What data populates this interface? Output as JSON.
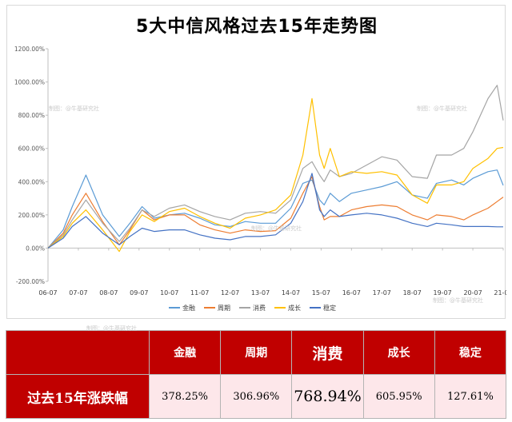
{
  "title": "5大中信风格过去15年走势图",
  "chart_data": {
    "type": "line",
    "title": "5大中信风格过去15年走势图",
    "yunit": "%",
    "ylim": [
      -200,
      1200
    ],
    "yticks": [
      -200,
      0,
      200,
      400,
      600,
      800,
      1000,
      1200
    ],
    "ytick_labels": [
      "-200.00%",
      "0.00%",
      "200.00%",
      "400.00%",
      "600.00%",
      "800.00%",
      "1000.00%",
      "1200.00%"
    ],
    "xlim": [
      2006.5,
      2021.5
    ],
    "xticks": [
      2006.5,
      2007.5,
      2008.5,
      2009.5,
      2010.5,
      2011.5,
      2012.5,
      2013.5,
      2014.5,
      2015.5,
      2016.5,
      2017.5,
      2018.5,
      2019.5,
      2020.5,
      2021.5
    ],
    "xtick_labels": [
      "06-07",
      "07-07",
      "08-07",
      "09-07",
      "10-07",
      "11-07",
      "12-07",
      "13-07",
      "14-07",
      "15-07",
      "16-07",
      "17-07",
      "18-07",
      "19-07",
      "20-07",
      "21-07"
    ],
    "grid": false,
    "legend_position": "bottom",
    "series": [
      {
        "name": "金融",
        "color": "#5b9bd5",
        "x": [
          2006.5,
          2007.0,
          2007.3,
          2007.75,
          2008.3,
          2008.85,
          2009.2,
          2009.6,
          2010.0,
          2010.5,
          2011.0,
          2011.5,
          2012.0,
          2012.5,
          2013.0,
          2013.5,
          2014.0,
          2014.5,
          2014.9,
          2015.2,
          2015.45,
          2015.6,
          2015.8,
          2016.1,
          2016.5,
          2017.0,
          2017.5,
          2018.0,
          2018.5,
          2019.0,
          2019.3,
          2019.8,
          2020.2,
          2020.5,
          2021.0,
          2021.3,
          2021.5
        ],
        "y": [
          0,
          110,
          250,
          440,
          200,
          70,
          150,
          250,
          180,
          200,
          210,
          180,
          140,
          130,
          160,
          150,
          150,
          240,
          390,
          410,
          290,
          260,
          330,
          280,
          330,
          350,
          370,
          400,
          320,
          300,
          390,
          410,
          380,
          420,
          460,
          470,
          378
        ]
      },
      {
        "name": "周期",
        "color": "#ed7d31",
        "x": [
          2006.5,
          2007.0,
          2007.3,
          2007.75,
          2008.3,
          2008.85,
          2009.2,
          2009.6,
          2010.0,
          2010.5,
          2011.0,
          2011.5,
          2012.0,
          2012.5,
          2013.0,
          2013.5,
          2014.0,
          2014.5,
          2014.9,
          2015.2,
          2015.45,
          2015.6,
          2015.8,
          2016.1,
          2016.5,
          2017.0,
          2017.5,
          2018.0,
          2018.5,
          2019.0,
          2019.3,
          2019.8,
          2020.2,
          2020.5,
          2021.0,
          2021.3,
          2021.5
        ],
        "y": [
          0,
          90,
          200,
          330,
          160,
          20,
          110,
          230,
          170,
          200,
          200,
          140,
          110,
          90,
          110,
          100,
          105,
          180,
          330,
          430,
          250,
          170,
          190,
          190,
          230,
          250,
          260,
          250,
          200,
          170,
          200,
          190,
          170,
          200,
          240,
          280,
          307
        ]
      },
      {
        "name": "消费",
        "color": "#a5a5a5",
        "x": [
          2006.5,
          2007.0,
          2007.3,
          2007.75,
          2008.3,
          2008.85,
          2009.2,
          2009.6,
          2010.0,
          2010.5,
          2011.0,
          2011.5,
          2012.0,
          2012.5,
          2013.0,
          2013.5,
          2014.0,
          2014.5,
          2014.9,
          2015.2,
          2015.45,
          2015.6,
          2015.8,
          2016.1,
          2016.5,
          2017.0,
          2017.5,
          2018.0,
          2018.5,
          2019.0,
          2019.3,
          2019.8,
          2020.2,
          2020.5,
          2021.0,
          2021.3,
          2021.5
        ],
        "y": [
          0,
          80,
          170,
          290,
          150,
          40,
          120,
          230,
          190,
          240,
          260,
          220,
          190,
          170,
          210,
          220,
          210,
          290,
          480,
          520,
          440,
          400,
          470,
          430,
          450,
          500,
          550,
          530,
          430,
          420,
          560,
          560,
          600,
          700,
          900,
          980,
          769
        ]
      },
      {
        "name": "成长",
        "color": "#ffc000",
        "x": [
          2006.5,
          2007.0,
          2007.3,
          2007.75,
          2008.3,
          2008.85,
          2009.2,
          2009.6,
          2010.0,
          2010.5,
          2011.0,
          2011.5,
          2012.0,
          2012.5,
          2013.0,
          2013.5,
          2014.0,
          2014.5,
          2014.9,
          2015.2,
          2015.45,
          2015.6,
          2015.8,
          2016.1,
          2016.5,
          2017.0,
          2017.5,
          2018.0,
          2018.5,
          2019.0,
          2019.3,
          2019.8,
          2020.2,
          2020.5,
          2021.0,
          2021.3,
          2021.5
        ],
        "y": [
          0,
          70,
          150,
          230,
          110,
          -20,
          100,
          200,
          160,
          220,
          240,
          190,
          150,
          120,
          180,
          200,
          230,
          320,
          560,
          900,
          560,
          480,
          600,
          430,
          460,
          450,
          460,
          440,
          320,
          270,
          380,
          380,
          400,
          480,
          540,
          600,
          606
        ]
      },
      {
        "name": "稳定",
        "color": "#4472c4",
        "x": [
          2006.5,
          2007.0,
          2007.3,
          2007.75,
          2008.3,
          2008.85,
          2009.2,
          2009.6,
          2010.0,
          2010.5,
          2011.0,
          2011.5,
          2012.0,
          2012.5,
          2013.0,
          2013.5,
          2014.0,
          2014.5,
          2014.9,
          2015.2,
          2015.45,
          2015.6,
          2015.8,
          2016.1,
          2016.5,
          2017.0,
          2017.5,
          2018.0,
          2018.5,
          2019.0,
          2019.3,
          2019.8,
          2020.2,
          2020.5,
          2021.0,
          2021.3,
          2021.5
        ],
        "y": [
          0,
          60,
          130,
          190,
          90,
          20,
          70,
          120,
          100,
          110,
          110,
          80,
          60,
          50,
          70,
          70,
          80,
          150,
          280,
          450,
          230,
          190,
          230,
          190,
          200,
          210,
          200,
          180,
          150,
          130,
          150,
          140,
          130,
          130,
          130,
          128,
          128
        ]
      }
    ]
  },
  "watermarks": [
    "制图：@牛基研究社",
    "制图：@牛基研究社",
    "制图：@牛基研究社",
    "制图：@牛基研究社",
    "制图：@牛基研究社"
  ],
  "summary_table": {
    "headers": [
      "",
      "金融",
      "周期",
      "消费",
      "成长",
      "稳定"
    ],
    "row_label": "过去15年涨跌幅",
    "values": [
      "378.25%",
      "306.96%",
      "768.94%",
      "605.95%",
      "127.61%"
    ]
  }
}
